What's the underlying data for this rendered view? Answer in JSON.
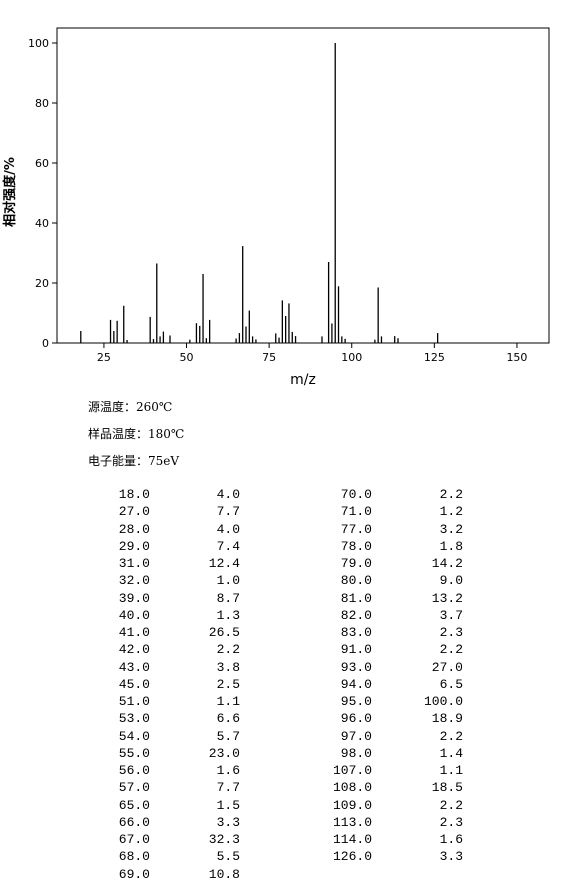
{
  "chart_data": {
    "type": "bar",
    "x_label": "m/z",
    "y_label": "相对强度/%",
    "x": [
      18,
      27,
      28,
      29,
      31,
      32,
      39,
      40,
      41,
      42,
      43,
      45,
      51,
      53,
      54,
      55,
      56,
      57,
      65,
      66,
      67,
      68,
      69,
      70,
      71,
      77,
      78,
      79,
      80,
      81,
      82,
      83,
      91,
      93,
      94,
      95,
      96,
      97,
      98,
      107,
      108,
      109,
      113,
      114,
      126
    ],
    "x_labels": [
      "18.0",
      "27.0",
      "28.0",
      "29.0",
      "31.0",
      "32.0",
      "39.0",
      "40.0",
      "41.0",
      "42.0",
      "43.0",
      "45.0",
      "51.0",
      "53.0",
      "54.0",
      "55.0",
      "56.0",
      "57.0",
      "65.0",
      "66.0",
      "67.0",
      "68.0",
      "69.0",
      "70.0",
      "71.0",
      "77.0",
      "78.0",
      "79.0",
      "80.0",
      "81.0",
      "82.0",
      "83.0",
      "91.0",
      "93.0",
      "94.0",
      "95.0",
      "96.0",
      "97.0",
      "98.0",
      "107.0",
      "108.0",
      "109.0",
      "113.0",
      "114.0",
      "126.0"
    ],
    "values": [
      4,
      7.7,
      4,
      7.4,
      12.4,
      1,
      8.7,
      1.3,
      26.5,
      2.2,
      3.8,
      2.5,
      1.1,
      6.6,
      5.7,
      23,
      1.6,
      7.7,
      1.5,
      3.3,
      32.3,
      5.5,
      10.8,
      2.2,
      1.2,
      3.2,
      1.8,
      14.2,
      9,
      13.2,
      3.7,
      2.3,
      2.2,
      27,
      6.5,
      100,
      18.9,
      2.2,
      1.4,
      1.1,
      18.5,
      2.2,
      2.3,
      1.6,
      3.3
    ],
    "value_labels": [
      "4.0",
      "7.7",
      "4.0",
      "7.4",
      "12.4",
      "1.0",
      "8.7",
      "1.3",
      "26.5",
      "2.2",
      "3.8",
      "2.5",
      "1.1",
      "6.6",
      "5.7",
      "23.0",
      "1.6",
      "7.7",
      "1.5",
      "3.3",
      "32.3",
      "5.5",
      "10.8",
      "2.2",
      "1.2",
      "3.2",
      "1.8",
      "14.2",
      "9.0",
      "13.2",
      "3.7",
      "2.3",
      "2.2",
      "27.0",
      "6.5",
      "100.0",
      "18.9",
      "2.2",
      "1.4",
      "1.1",
      "18.5",
      "2.2",
      "2.3",
      "1.6",
      "3.3"
    ],
    "color": "#000000",
    "xlim": [
      10.8,
      159.7
    ],
    "ylim": [
      0,
      105
    ],
    "xticks": [
      25,
      50,
      75,
      100,
      125,
      150
    ],
    "yticks": [
      0,
      20,
      40,
      60,
      80,
      100
    ]
  },
  "info": [
    "源温度：260℃",
    "样品温度：180℃",
    "电子能量：75eV"
  ]
}
